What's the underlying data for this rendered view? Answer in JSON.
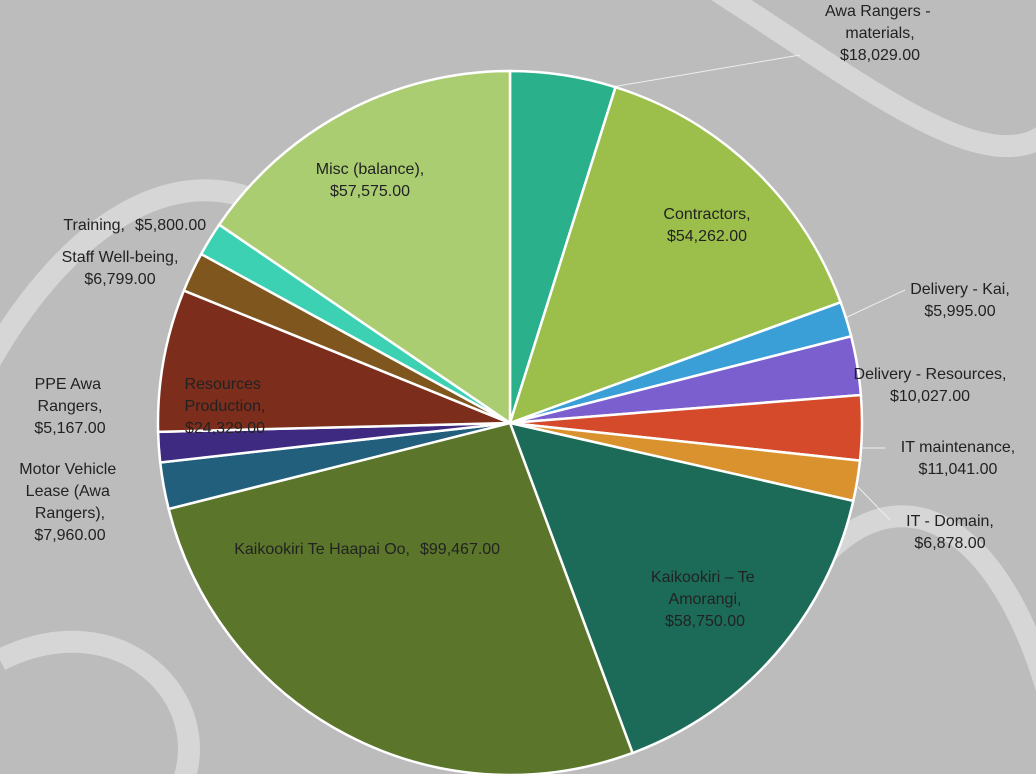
{
  "chart_data": {
    "type": "pie",
    "categories": [
      "Awa Rangers - materials,",
      "Contractors,",
      "Delivery - Kai,",
      "Delivery - Resources,",
      "IT maintenance,",
      "IT - Domain,",
      "Kaikookiri – Te Amorangi,",
      "Kaikookiri Te Haapai Oo,",
      "Motor Vehicle Lease (Awa Rangers),",
      "PPE Awa Rangers,",
      "Resources Production,",
      "Staff Well-being,",
      "Training,",
      "Misc (balance),"
    ],
    "values": [
      18029,
      54262,
      5995,
      10027,
      11041,
      6878,
      58750,
      99467,
      7960,
      5167,
      24329,
      6799,
      5800,
      57575
    ],
    "value_labels": [
      "$18,029.00",
      "$54,262.00",
      "$5,995.00",
      "$10,027.00",
      "$11,041.00",
      "$6,878.00",
      "$58,750.00",
      "$99,467.00",
      "$7,960.00",
      "$5,167.00",
      "$24,329.00",
      "$6,799.00",
      "$5,800.00",
      "$57,575.00"
    ],
    "colors": [
      "#2bb08c",
      "#9bbf4a",
      "#3a9fd6",
      "#7c5fcf",
      "#d44a2a",
      "#d9922e",
      "#1b6b58",
      "#5b762b",
      "#225f7d",
      "#3f2a82",
      "#7c2d1b",
      "#7f561d",
      "#3dd1b4",
      "#abcd72"
    ]
  }
}
